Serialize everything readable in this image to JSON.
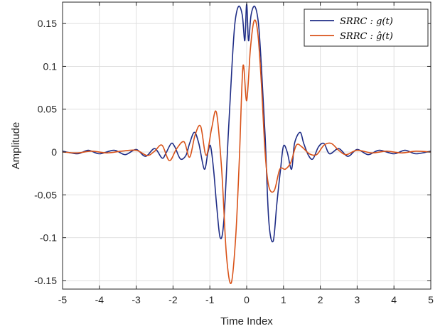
{
  "chart_data": {
    "type": "line",
    "xlabel": "Time Index",
    "ylabel": "Amplitude",
    "xlim": [
      -5,
      5
    ],
    "ylim": [
      -0.16,
      0.175
    ],
    "grid": true,
    "legend_position": "top-right",
    "x_ticks": [
      -5,
      -4,
      -3,
      -2,
      -1,
      0,
      1,
      2,
      3,
      4,
      5
    ],
    "x_tick_labels": [
      "-5",
      "-4",
      "-3",
      "-2",
      "-1",
      "0",
      "1",
      "2",
      "3",
      "4",
      "5"
    ],
    "y_ticks": [
      -0.15,
      -0.1,
      -0.05,
      0,
      0.05,
      0.1,
      0.15
    ],
    "y_tick_labels": [
      "-0.15",
      "-0.1",
      "-0.05",
      "0",
      "0.05",
      "0.1",
      "0.15"
    ],
    "series": [
      {
        "name": "SRRC : g(t)",
        "color": "#1f2d86",
        "x": [
          -5,
          -4.6,
          -4.3,
          -4,
          -3.6,
          -3.3,
          -3,
          -2.75,
          -2.5,
          -2.3,
          -2.2,
          -2.05,
          -1.95,
          -1.8,
          -1.65,
          -1.55,
          -1.42,
          -1.3,
          -1.15,
          -1.05,
          -0.98,
          -0.9,
          -0.82,
          -0.72,
          -0.62,
          -0.5,
          -0.4,
          -0.32,
          -0.22,
          -0.12,
          -0.05,
          0,
          0.05,
          0.12,
          0.22,
          0.32,
          0.4,
          0.5,
          0.6,
          0.72,
          0.82,
          0.92,
          1,
          1.1,
          1.22,
          1.3,
          1.45,
          1.55,
          1.68,
          1.8,
          1.95,
          2.1,
          2.25,
          2.5,
          2.75,
          3,
          3.3,
          3.6,
          4,
          4.3,
          4.6,
          5
        ],
        "y": [
          0.001,
          -0.002,
          0.002,
          -0.002,
          0.002,
          -0.003,
          0.003,
          -0.005,
          0.004,
          -0.007,
          -0.002,
          0.01,
          0.006,
          -0.008,
          -0.004,
          0.01,
          0.023,
          0.01,
          -0.02,
          0.0,
          0.007,
          -0.02,
          -0.06,
          -0.1,
          -0.08,
          0.02,
          0.1,
          0.15,
          0.17,
          0.16,
          0.13,
          0.173,
          0.13,
          0.16,
          0.17,
          0.15,
          0.1,
          0.02,
          -0.08,
          -0.104,
          -0.06,
          -0.02,
          0.007,
          0.0,
          -0.02,
          0.01,
          0.023,
          0.01,
          -0.004,
          -0.008,
          0.006,
          0.01,
          -0.002,
          0.004,
          -0.005,
          0.003,
          -0.003,
          0.002,
          -0.002,
          0.002,
          -0.002,
          0.001
        ]
      },
      {
        "name": "SRRC : ĝ(t)",
        "color": "#d95319",
        "x": [
          -5,
          -4.6,
          -4.2,
          -3.8,
          -3.4,
          -3.0,
          -2.7,
          -2.5,
          -2.3,
          -2.1,
          -1.9,
          -1.7,
          -1.55,
          -1.4,
          -1.25,
          -1.1,
          -0.95,
          -0.82,
          -0.68,
          -0.55,
          -0.42,
          -0.3,
          -0.2,
          -0.1,
          0,
          0.1,
          0.2,
          0.3,
          0.4,
          0.5,
          0.6,
          0.75,
          0.9,
          1.05,
          1.2,
          1.35,
          1.5,
          1.7,
          1.9,
          2.1,
          2.3,
          2.5,
          2.7,
          3.0,
          3.4,
          3.8,
          4.2,
          4.6,
          5
        ],
        "y": [
          0.0,
          -0.001,
          0.001,
          -0.001,
          0.001,
          0.002,
          -0.004,
          0.001,
          0.008,
          -0.01,
          0.004,
          0.012,
          -0.006,
          0.02,
          0.03,
          -0.004,
          0.028,
          0.046,
          -0.02,
          -0.12,
          -0.153,
          -0.1,
          -0.01,
          0.1,
          0.06,
          0.12,
          0.153,
          0.14,
          0.08,
          0.0,
          -0.04,
          -0.045,
          -0.02,
          -0.02,
          -0.012,
          0.008,
          0.006,
          -0.002,
          -0.003,
          0.008,
          0.01,
          0.002,
          -0.003,
          0.002,
          -0.001,
          0.001,
          -0.001,
          0.001,
          0.0
        ]
      }
    ]
  }
}
